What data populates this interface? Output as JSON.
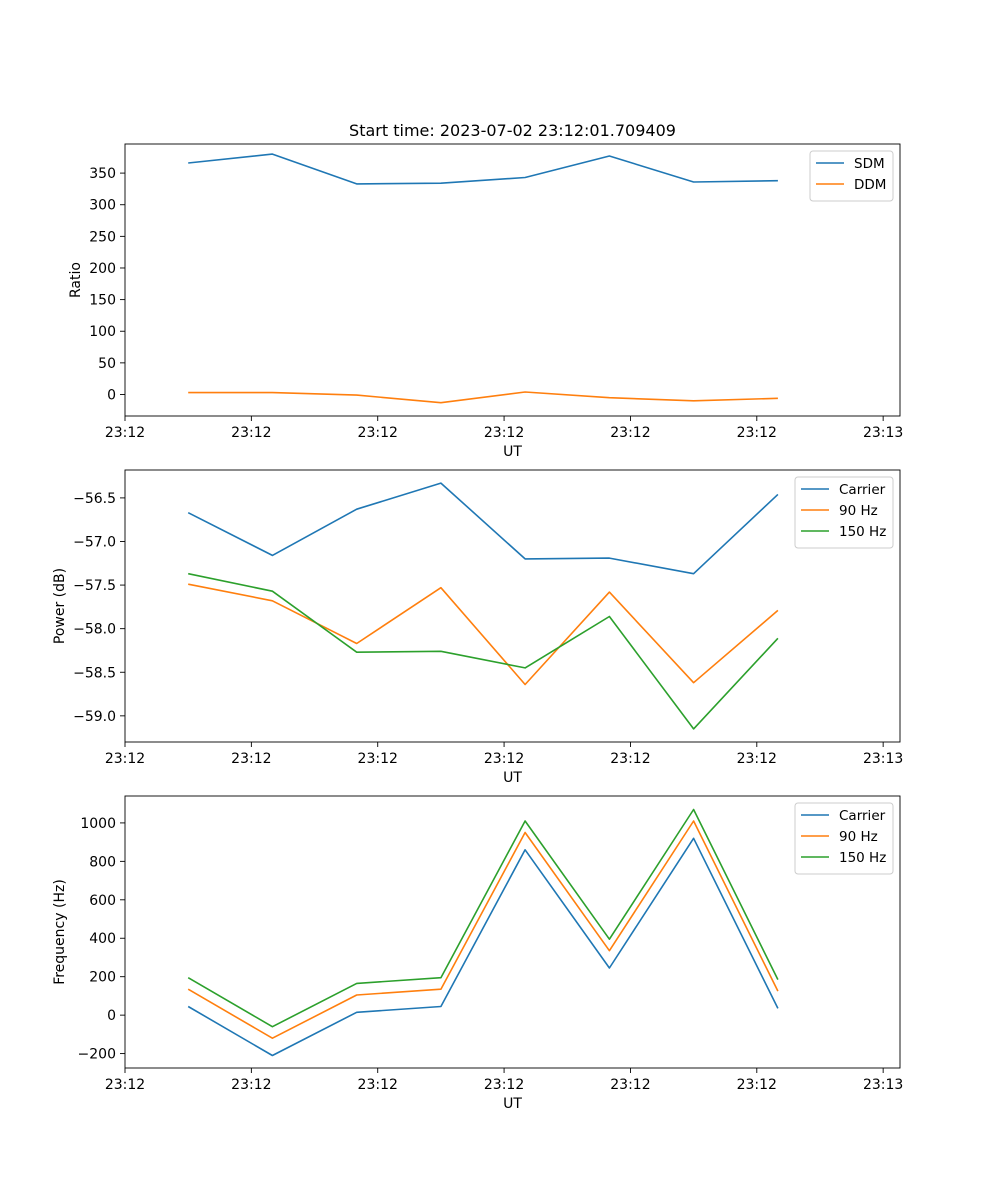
{
  "figure_title": "Start time: 2023-07-02 23:12:01.709409",
  "colors": {
    "blue": "#1f77b4",
    "orange": "#ff7f0e",
    "green": "#2ca02c"
  },
  "chart_data": [
    {
      "type": "line",
      "title": "Start time: 2023-07-02 23:12:01.709409",
      "xlabel": "UT",
      "ylabel": "Ratio",
      "xlim": [
        0,
        9.2
      ],
      "ylim": [
        -34,
        396
      ],
      "x": [
        0.75,
        1.75,
        2.75,
        3.75,
        4.75,
        5.75,
        6.75,
        7.75
      ],
      "xticks": [
        0.0,
        1.5,
        3.0,
        4.5,
        6.0,
        7.5,
        9.0
      ],
      "xtick_labels": [
        "23:12",
        "23:12",
        "23:12",
        "23:12",
        "23:12",
        "23:12",
        "23:13"
      ],
      "yticks": [
        0,
        50,
        100,
        150,
        200,
        250,
        300,
        350
      ],
      "ytick_labels": [
        "0",
        "50",
        "100",
        "150",
        "200",
        "250",
        "300",
        "350"
      ],
      "legend": "top-right",
      "series": [
        {
          "name": "SDM",
          "color": "#1f77b4",
          "values": [
            366,
            380,
            333,
            334,
            343,
            377,
            336,
            338
          ]
        },
        {
          "name": "DDM",
          "color": "#ff7f0e",
          "values": [
            3,
            3,
            -1,
            -13,
            4,
            -5,
            -10,
            -6
          ]
        }
      ]
    },
    {
      "type": "line",
      "title": "",
      "xlabel": "UT",
      "ylabel": "Power (dB)",
      "xlim": [
        0,
        9.2
      ],
      "ylim": [
        -59.3,
        -56.18
      ],
      "x": [
        0.75,
        1.75,
        2.75,
        3.75,
        4.75,
        5.75,
        6.75,
        7.75
      ],
      "xticks": [
        0.0,
        1.5,
        3.0,
        4.5,
        6.0,
        7.5,
        9.0
      ],
      "xtick_labels": [
        "23:12",
        "23:12",
        "23:12",
        "23:12",
        "23:12",
        "23:12",
        "23:13"
      ],
      "yticks": [
        -59.0,
        -58.5,
        -58.0,
        -57.5,
        -57.0,
        -56.5
      ],
      "ytick_labels": [
        "−59.0",
        "−58.5",
        "−58.0",
        "−57.5",
        "−57.0",
        "−56.5"
      ],
      "legend": "top-right",
      "series": [
        {
          "name": "Carrier",
          "color": "#1f77b4",
          "values": [
            -56.67,
            -57.16,
            -56.63,
            -56.33,
            -57.2,
            -57.19,
            -57.37,
            -56.46
          ]
        },
        {
          "name": "90 Hz",
          "color": "#ff7f0e",
          "values": [
            -57.49,
            -57.68,
            -58.17,
            -57.53,
            -58.64,
            -57.58,
            -58.62,
            -57.79
          ]
        },
        {
          "name": "150 Hz",
          "color": "#2ca02c",
          "values": [
            -57.37,
            -57.57,
            -58.27,
            -58.26,
            -58.45,
            -57.86,
            -59.15,
            -58.11
          ]
        }
      ]
    },
    {
      "type": "line",
      "title": "",
      "xlabel": "UT",
      "ylabel": "Frequency (Hz)",
      "xlim": [
        0,
        9.2
      ],
      "ylim": [
        -275,
        1140
      ],
      "x": [
        0.75,
        1.75,
        2.75,
        3.75,
        4.75,
        5.75,
        6.75,
        7.75
      ],
      "xticks": [
        0.0,
        1.5,
        3.0,
        4.5,
        6.0,
        7.5,
        9.0
      ],
      "xtick_labels": [
        "23:12",
        "23:12",
        "23:12",
        "23:12",
        "23:12",
        "23:12",
        "23:13"
      ],
      "yticks": [
        -200,
        0,
        200,
        400,
        600,
        800,
        1000
      ],
      "ytick_labels": [
        "−200",
        "0",
        "200",
        "400",
        "600",
        "800",
        "1000"
      ],
      "legend": "top-right",
      "series": [
        {
          "name": "Carrier",
          "color": "#1f77b4",
          "values": [
            45,
            -210,
            15,
            45,
            860,
            245,
            920,
            35
          ]
        },
        {
          "name": "90 Hz",
          "color": "#ff7f0e",
          "values": [
            135,
            -120,
            105,
            135,
            950,
            335,
            1010,
            125
          ]
        },
        {
          "name": "150 Hz",
          "color": "#2ca02c",
          "values": [
            195,
            -60,
            165,
            195,
            1010,
            395,
            1070,
            185
          ]
        }
      ]
    }
  ]
}
